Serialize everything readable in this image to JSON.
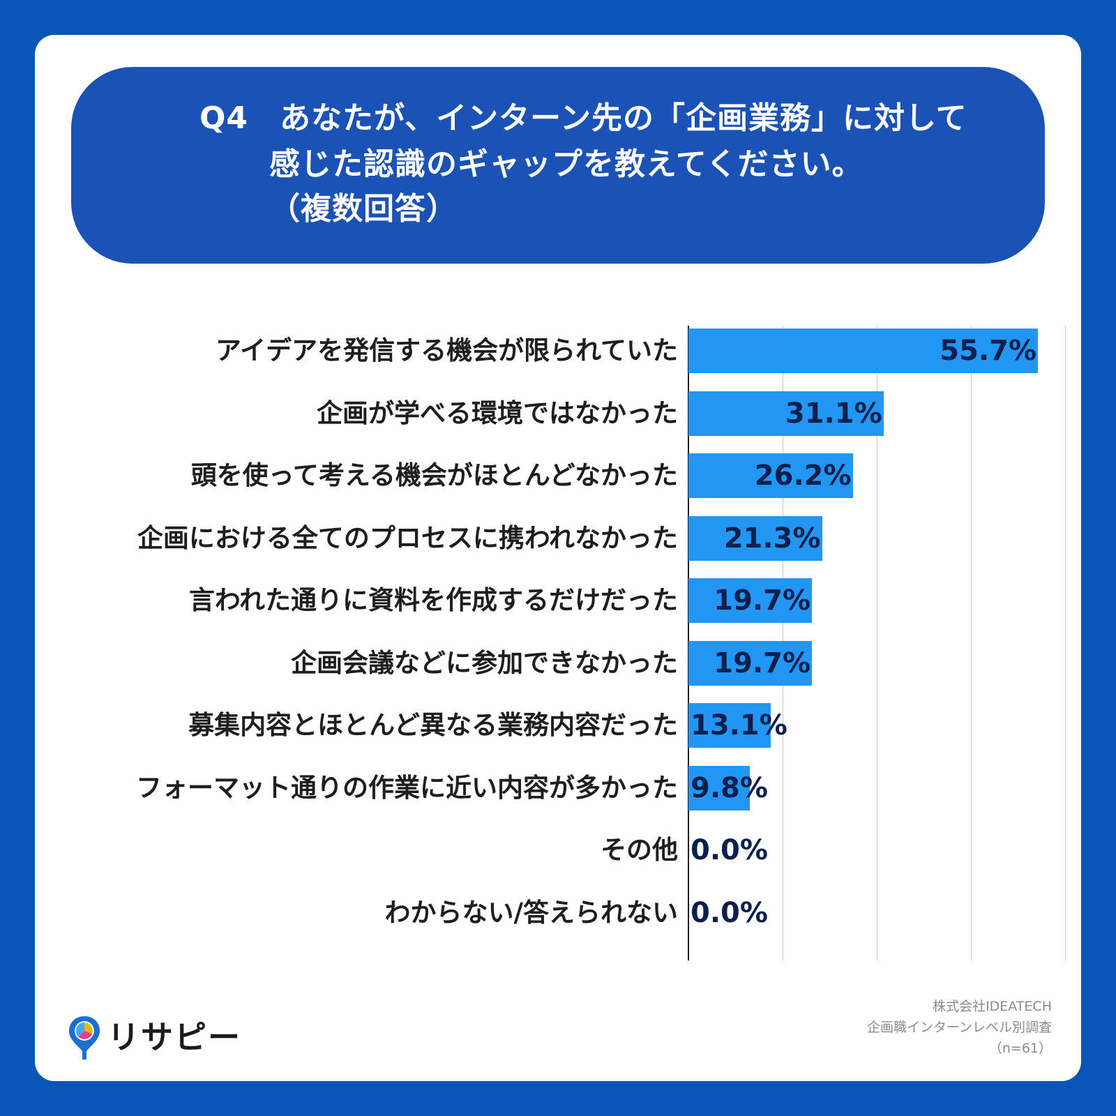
{
  "title": {
    "line1": "Q4　あなたが、インターン先の「企画業務」に対して",
    "line2": "感じた認識のギャップを教えてください。",
    "line3": "（複数回答）"
  },
  "chart_data": {
    "type": "bar",
    "orientation": "horizontal",
    "categories": [
      "アイデアを発信する機会が限られていた",
      "企画が学べる環境ではなかった",
      "頭を使って考える機会がほとんどなかった",
      "企画における全てのプロセスに携われなかった",
      "言われた通りに資料を作成するだけだった",
      "企画会議などに参加できなかった",
      "募集内容とほとんど異なる業務内容だった",
      "フォーマット通りの作業に近い内容が多かった",
      "その他",
      "わからない/答えられない"
    ],
    "values": [
      55.7,
      31.1,
      26.2,
      21.3,
      19.7,
      19.7,
      13.1,
      9.8,
      0.0,
      0.0
    ],
    "value_labels": [
      "55.7%",
      "31.1%",
      "26.2%",
      "21.3%",
      "19.7%",
      "19.7%",
      "13.1%",
      "9.8%",
      "0.0%",
      "0.0%"
    ],
    "xlim": [
      0,
      60
    ],
    "grid": true,
    "bar_color": "#2196f3"
  },
  "source": {
    "company": "株式会社IDEATECH",
    "survey": "企画職インターンレベル別調査",
    "n": "（n=61）"
  },
  "logo": {
    "text": "リサピー"
  }
}
